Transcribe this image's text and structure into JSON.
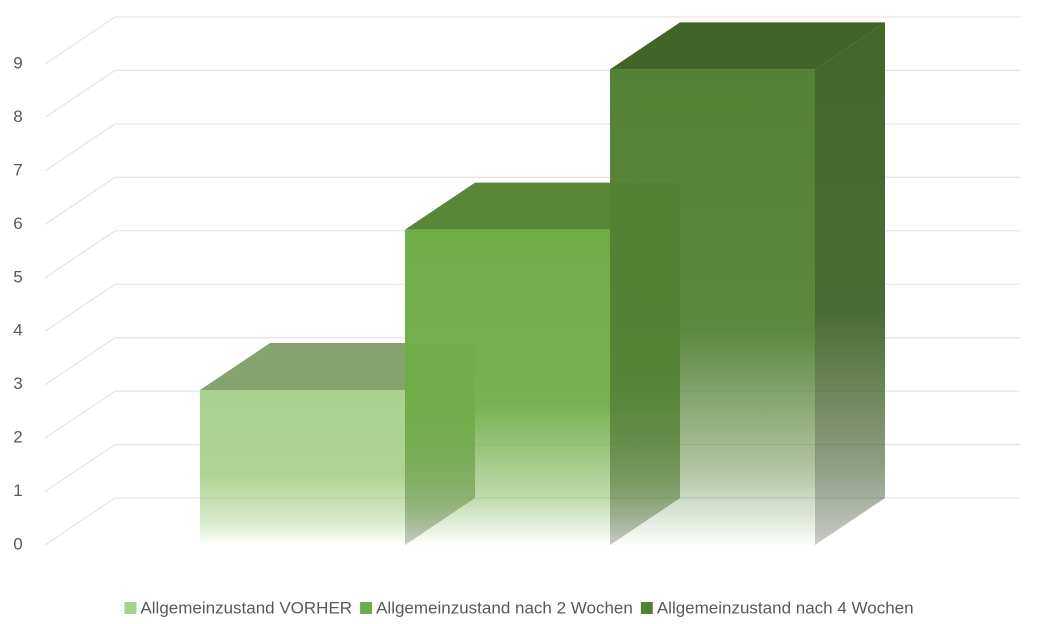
{
  "chart_data": {
    "type": "bar3d",
    "series": [
      {
        "name": "Allgemeinzustand VORHER",
        "color": "#a9d18e",
        "values": [
          2.9
        ]
      },
      {
        "name": "Allgemeinzustand nach 2 Wochen",
        "color": "#70ad47",
        "values": [
          5.9
        ]
      },
      {
        "name": "Allgemeinzustand nach 4 Wochen",
        "color": "#548235",
        "values": [
          8.9
        ]
      }
    ],
    "ylim": [
      0,
      9
    ],
    "yticks": [
      0,
      1,
      2,
      3,
      4,
      5,
      6,
      7,
      8,
      9
    ],
    "grid": true,
    "legend": "bottom"
  }
}
